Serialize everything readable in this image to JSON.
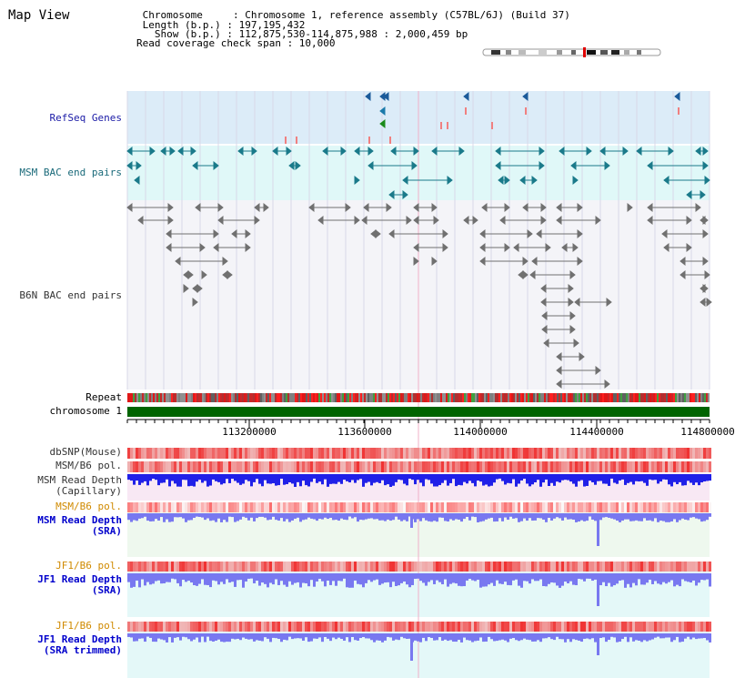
{
  "title": "Map View",
  "info": {
    "chromosome": " Chromosome     : Chromosome 1, reference assembly (C57BL/6J) (Build 37)",
    "length": " Length (b.p.) : 197,195,432",
    "show": "   Show (b.p.) : 112,875,530-114,875,988 : 2,000,459 bp",
    "coverage": "Read coverage check span : 10,000"
  },
  "tracks": {
    "refseq": "RefSeq Genes",
    "msm_bac": "MSM BAC end pairs",
    "b6n_bac": "B6N BAC end pairs",
    "repeat": "Repeat",
    "chrom": "chromosome 1",
    "dbsnp": "dbSNP(Mouse)",
    "msm_b6_pol": "MSM/B6 pol.",
    "msm_depth_cap_1": "MSM Read Depth",
    "msm_depth_cap_2": "(Capillary)",
    "msm_b6_pol_2": "MSM/B6 pol.",
    "msm_depth_sra_1": "MSM Read Depth",
    "msm_depth_sra_2": "(SRA)",
    "jf1_b6_pol": "JF1/B6 pol.",
    "jf1_depth_sra_1": "JF1 Read Depth",
    "jf1_depth_sra_2": "(SRA)",
    "jf1_b6_pol_2": "JF1/B6 pol.",
    "jf1_depth_trim_1": "JF1 Read Depth",
    "jf1_depth_trim_2": "(SRA trimmed)"
  },
  "axis": {
    "ticks": [
      "113200000",
      "113600000",
      "114000000",
      "114400000",
      "114800000"
    ]
  },
  "colors": {
    "refseq_bg": "#dcecf8",
    "msm_bg": "#e0f8f8",
    "b6n_bg": "#f4f4f8",
    "chromosome_bar": "#006400",
    "snp_red": "#e81818",
    "depth_blue": "#2020e8",
    "depth_sra_blue": "#7878f0",
    "teal_feature": "#1a7a8a"
  }
}
